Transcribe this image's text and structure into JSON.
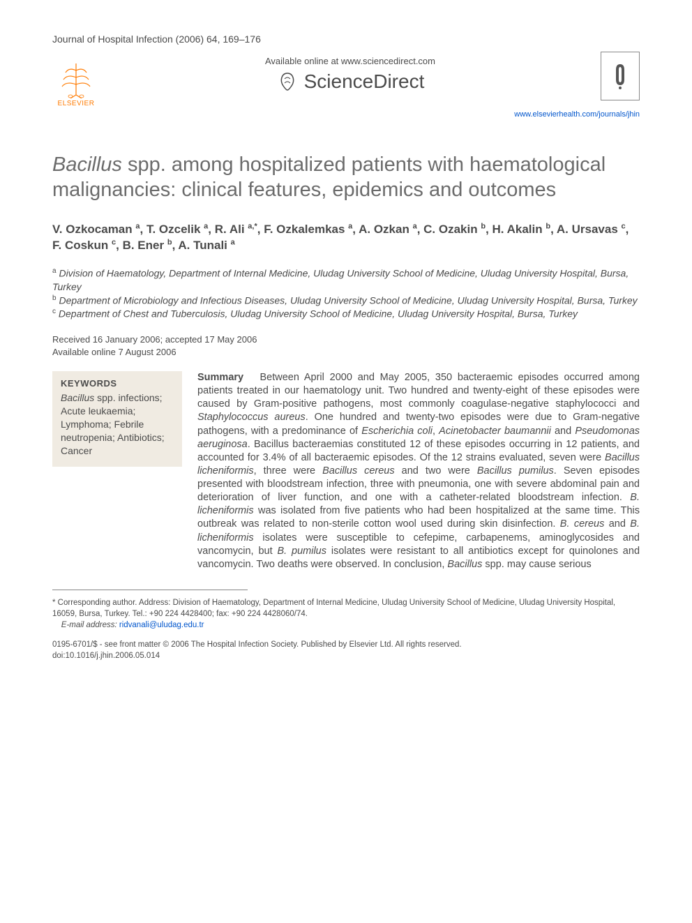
{
  "journal_ref": "Journal of Hospital Infection (2006) 64, 169–176",
  "header": {
    "elsevier_label": "ELSEVIER",
    "available_online": "Available online at www.sciencedirect.com",
    "sciencedirect": "ScienceDirect",
    "journal_link": "www.elsevierhealth.com/journals/jhin"
  },
  "title_italic": "Bacillus",
  "title_rest": " spp. among hospitalized patients with haematological malignancies: clinical features, epidemics and outcomes",
  "authors_html": "V. Ozkocaman <sup>a</sup>, T. Ozcelik <sup>a</sup>, R. Ali <sup>a,*</sup>, F. Ozkalemkas <sup>a</sup>, A. Ozkan <sup>a</sup>, C. Ozakin <sup>b</sup>, H. Akalin <sup>b</sup>, A. Ursavas <sup>c</sup>, F. Coskun <sup>c</sup>, B. Ener <sup>b</sup>, A. Tunali <sup>a</sup>",
  "affiliations": {
    "a": "Division of Haematology, Department of Internal Medicine, Uludag University School of Medicine, Uludag University Hospital, Bursa, Turkey",
    "b": "Department of Microbiology and Infectious Diseases, Uludag University School of Medicine, Uludag University Hospital, Bursa, Turkey",
    "c": "Department of Chest and Tuberculosis, Uludag University School of Medicine, Uludag University Hospital, Bursa, Turkey"
  },
  "dates": {
    "received_accepted": "Received 16 January 2006; accepted 17 May 2006",
    "available_online": "Available online 7 August 2006"
  },
  "keywords": {
    "heading": "KEYWORDS",
    "body_html": "<span class=\"ital\">Bacillus</span> spp. infections; Acute leukaemia; Lymphoma; Febrile neutropenia; Antibiotics; Cancer"
  },
  "summary": {
    "label": "Summary",
    "body_html": "Between April 2000 and May 2005, 350 bacteraemic episodes occurred among patients treated in our haematology unit. Two hundred and twenty-eight of these episodes were caused by Gram-positive pathogens, most commonly coagulase-negative staphylococci and <span class=\"ital\">Staphylococcus aureus</span>. One hundred and twenty-two episodes were due to Gram-negative pathogens, with a predominance of <span class=\"ital\">Escherichia coli</span>, <span class=\"ital\">Acinetobacter baumannii</span> and <span class=\"ital\">Pseudomonas aeruginosa</span>. Bacillus bacteraemias constituted 12 of these episodes occurring in 12 patients, and accounted for 3.4% of all bacteraemic episodes. Of the 12 strains evaluated, seven were <span class=\"ital\">Bacillus licheniformis</span>, three were <span class=\"ital\">Bacillus cereus</span> and two were <span class=\"ital\">Bacillus pumilus</span>. Seven episodes presented with bloodstream infection, three with pneumonia, one with severe abdominal pain and deterioration of liver function, and one with a catheter-related bloodstream infection. <span class=\"ital\">B. licheniformis</span> was isolated from five patients who had been hospitalized at the same time. This outbreak was related to non-sterile cotton wool used during skin disinfection. <span class=\"ital\">B. cereus</span> and <span class=\"ital\">B. licheniformis</span> isolates were susceptible to cefepime, carbapenems, aminoglycosides and vancomycin, but <span class=\"ital\">B. pumilus</span> isolates were resistant to all antibiotics except for quinolones and vancomycin. Two deaths were observed. In conclusion, <span class=\"ital\">Bacillus</span> spp. may cause serious"
  },
  "footer": {
    "corresponding": "* Corresponding author. Address: Division of Haematology, Department of Internal Medicine, Uludag University School of Medicine, Uludag University Hospital, 16059, Bursa, Turkey. Tel.: +90 224 4428400; fax: +90 224 4428060/74.",
    "email_label": "E-mail address:",
    "email": "ridvanali@uludag.edu.tr",
    "copyright_line1": "0195-6701/$ - see front matter © 2006 The Hospital Infection Society. Published by Elsevier Ltd. All rights reserved.",
    "copyright_line2": "doi:10.1016/j.jhin.2006.05.014"
  },
  "colors": {
    "text": "#4a4a4a",
    "title_gray": "#6b6b6b",
    "link_blue": "#0055cc",
    "elsevier_orange": "#ff7a00",
    "keywords_bg": "#f0ebe2",
    "background": "#ffffff"
  },
  "typography": {
    "journal_ref_fontsize": 14,
    "title_fontsize": 29,
    "authors_fontsize": 17,
    "affiliations_fontsize": 14,
    "body_fontsize": 14.5,
    "footer_fontsize": 11.5
  }
}
